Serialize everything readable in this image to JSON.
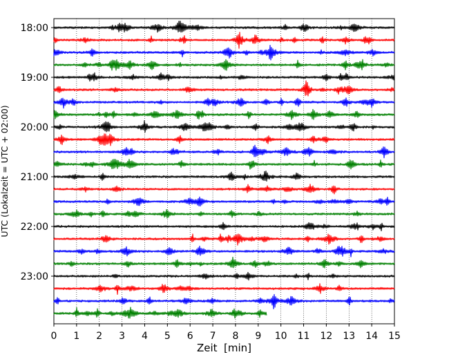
{
  "chart_data": {
    "type": "line",
    "title": "",
    "xlabel": "Zeit  [min]",
    "ylabel": "UTC (Lokalzeit = UTC + 02:00)",
    "xlim": [
      0,
      15
    ],
    "x_ticks": [
      "0",
      "1",
      "2",
      "3",
      "4",
      "5",
      "6",
      "7",
      "8",
      "9",
      "10",
      "11",
      "12",
      "13",
      "14",
      "15"
    ],
    "y_ticks": [
      "18:00",
      "19:00",
      "20:00",
      "21:00",
      "22:00",
      "23:00"
    ],
    "grid": "vertical dotted",
    "trace_interval_min": 15,
    "trace_colors": [
      "#000000",
      "#ff0000",
      "#0000ff",
      "#008000"
    ],
    "traces": [
      {
        "start": "18:00",
        "end_min": 15
      },
      {
        "start": "18:15",
        "end_min": 15
      },
      {
        "start": "18:30",
        "end_min": 15
      },
      {
        "start": "18:45",
        "end_min": 15
      },
      {
        "start": "19:00",
        "end_min": 15
      },
      {
        "start": "19:15",
        "end_min": 15
      },
      {
        "start": "19:30",
        "end_min": 15
      },
      {
        "start": "19:45",
        "end_min": 15
      },
      {
        "start": "20:00",
        "end_min": 15
      },
      {
        "start": "20:15",
        "end_min": 15
      },
      {
        "start": "20:30",
        "end_min": 15
      },
      {
        "start": "20:45",
        "end_min": 15
      },
      {
        "start": "21:00",
        "end_min": 15
      },
      {
        "start": "21:15",
        "end_min": 15
      },
      {
        "start": "21:30",
        "end_min": 15
      },
      {
        "start": "21:45",
        "end_min": 15
      },
      {
        "start": "22:00",
        "end_min": 15
      },
      {
        "start": "22:15",
        "end_min": 15
      },
      {
        "start": "22:30",
        "end_min": 15
      },
      {
        "start": "22:45",
        "end_min": 15
      },
      {
        "start": "23:00",
        "end_min": 15
      },
      {
        "start": "23:15",
        "end_min": 15
      },
      {
        "start": "23:30",
        "end_min": 15
      },
      {
        "start": "23:45",
        "end_min": 9.4
      }
    ]
  }
}
